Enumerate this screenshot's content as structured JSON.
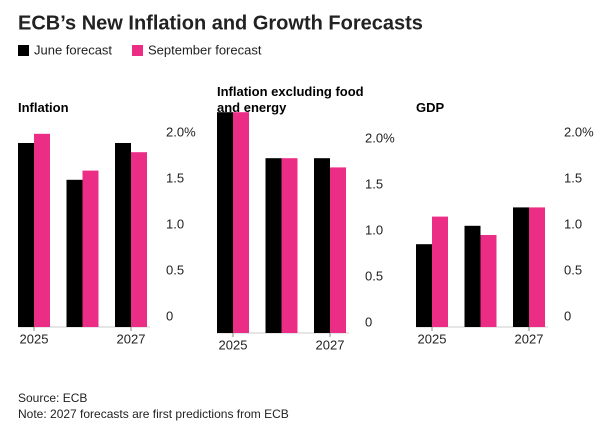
{
  "title": "ECB’s New Inflation and Growth Forecasts",
  "source": "Source: ECB",
  "note": "Note: 2027 forecasts are first predictions from ECB",
  "chart_data": [
    {
      "type": "bar",
      "title": "Inflation",
      "categories": [
        "2025",
        null,
        "2027"
      ],
      "series": [
        {
          "name": "June forecast",
          "color": "#000000",
          "values": [
            2.0,
            1.6,
            2.0
          ]
        },
        {
          "name": "September forecast",
          "color": "#ec2d85",
          "values": [
            2.1,
            1.7,
            1.9
          ]
        }
      ],
      "ylim": [
        0,
        2.4
      ],
      "yticks": [
        0,
        0.5,
        {
          "value": 1,
          "label": "1.0"
        },
        1.5,
        {
          "value": 2,
          "label": "2.0%"
        }
      ]
    },
    {
      "type": "bar",
      "title": "Inflation excluding food and energy",
      "categories": [
        "2025",
        null,
        "2027"
      ],
      "series": [
        {
          "name": "June forecast",
          "color": "#000000",
          "values": [
            2.4,
            1.9,
            1.9
          ]
        },
        {
          "name": "September forecast",
          "color": "#ec2d85",
          "values": [
            2.4,
            1.9,
            1.8
          ]
        }
      ],
      "ylim": [
        0,
        2.4
      ],
      "yticks": [
        0,
        0.5,
        {
          "value": 1,
          "label": "1.0"
        },
        1.5,
        {
          "value": 2,
          "label": "2.0%"
        }
      ]
    },
    {
      "type": "bar",
      "title": "GDP",
      "categories": [
        "2025",
        null,
        "2027"
      ],
      "series": [
        {
          "name": "June forecast",
          "color": "#000000",
          "values": [
            0.9,
            1.1,
            1.3
          ]
        },
        {
          "name": "September forecast",
          "color": "#ec2d85",
          "values": [
            1.2,
            1.0,
            1.3
          ]
        }
      ],
      "ylim": [
        0,
        2.4
      ],
      "yticks": [
        0,
        0.5,
        {
          "value": 1,
          "label": "1.0"
        },
        1.5,
        {
          "value": 2,
          "label": "2.0%"
        }
      ]
    }
  ]
}
